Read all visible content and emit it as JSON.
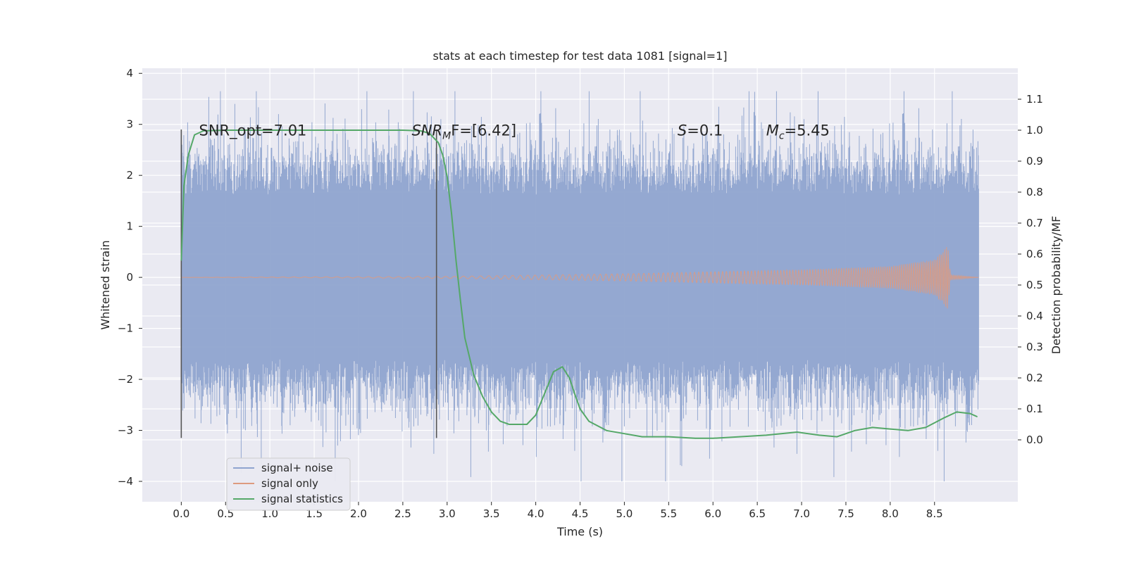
{
  "chart_data": {
    "type": "line",
    "title": "stats at each timestep for test data 1081 [signal=1]",
    "xlabel": "Time (s)",
    "ylabel": "Whitened strain",
    "y2label": "Detection probability/MF",
    "xlim": [
      -0.44,
      9.44
    ],
    "ylim": [
      -4.4,
      4.1
    ],
    "y2lim": [
      -0.2,
      1.2
    ],
    "xticks": [
      0.0,
      0.5,
      1.0,
      1.5,
      2.0,
      2.5,
      3.0,
      3.5,
      4.0,
      4.5,
      5.0,
      5.5,
      6.0,
      6.5,
      7.0,
      7.5,
      8.0,
      8.5
    ],
    "xtick_labels": [
      "0.0",
      "0.5",
      "1.0",
      "1.5",
      "2.0",
      "2.5",
      "3.0",
      "3.5",
      "4.0",
      "4.5",
      "5.0",
      "5.5",
      "6.0",
      "6.5",
      "7.0",
      "7.5",
      "8.0",
      "8.5"
    ],
    "yticks": [
      -4,
      -3,
      -2,
      -1,
      0,
      1,
      2,
      3,
      4
    ],
    "ytick_labels": [
      "−4",
      "−3",
      "−2",
      "−1",
      "0",
      "1",
      "2",
      "3",
      "4"
    ],
    "y2ticks": [
      0.0,
      0.1,
      0.2,
      0.3,
      0.4,
      0.5,
      0.6,
      0.7,
      0.8,
      0.9,
      1.0,
      1.1
    ],
    "y2tick_labels": [
      "0.0",
      "0.1",
      "0.2",
      "0.3",
      "0.4",
      "0.5",
      "0.6",
      "0.7",
      "0.8",
      "0.9",
      "1.0",
      "1.1"
    ],
    "grid": true,
    "legend_placement": "lower-left",
    "series": [
      {
        "name": "signal+ noise",
        "color": "#8fa4cf",
        "kind": "noise-band",
        "x_range": [
          0.0,
          9.0
        ],
        "typical_amplitude": 1.6,
        "peak_max": 3.65,
        "peak_min": -4.0
      },
      {
        "name": "signal only",
        "color": "#dd9a7f",
        "kind": "chirp",
        "x_range": [
          0.0,
          9.0
        ],
        "envelope": [
          [
            0.0,
            0.0
          ],
          [
            3.0,
            0.02
          ],
          [
            5.0,
            0.07
          ],
          [
            7.0,
            0.15
          ],
          [
            8.0,
            0.22
          ],
          [
            8.5,
            0.35
          ],
          [
            8.65,
            0.62
          ],
          [
            8.68,
            0.05
          ],
          [
            9.0,
            0.0
          ]
        ]
      },
      {
        "name": "signal statistics",
        "color": "#55a868",
        "axis": "right",
        "kind": "line",
        "x": [
          0.0,
          0.03,
          0.08,
          0.15,
          0.25,
          0.5,
          1.0,
          2.0,
          2.5,
          2.7,
          2.8,
          2.9,
          2.95,
          3.0,
          3.05,
          3.1,
          3.15,
          3.2,
          3.3,
          3.4,
          3.5,
          3.6,
          3.7,
          3.8,
          3.9,
          4.0,
          4.1,
          4.2,
          4.3,
          4.38,
          4.45,
          4.5,
          4.6,
          4.8,
          5.0,
          5.2,
          5.5,
          5.8,
          6.0,
          6.3,
          6.6,
          6.95,
          7.2,
          7.4,
          7.6,
          7.8,
          8.0,
          8.2,
          8.4,
          8.6,
          8.75,
          8.9,
          8.98
        ],
        "y": [
          0.58,
          0.82,
          0.92,
          0.985,
          0.998,
          1.0,
          1.0,
          1.0,
          1.0,
          0.998,
          0.99,
          0.96,
          0.92,
          0.85,
          0.73,
          0.58,
          0.45,
          0.33,
          0.21,
          0.14,
          0.09,
          0.06,
          0.05,
          0.05,
          0.05,
          0.08,
          0.15,
          0.22,
          0.236,
          0.2,
          0.14,
          0.1,
          0.06,
          0.03,
          0.02,
          0.01,
          0.01,
          0.005,
          0.005,
          0.01,
          0.015,
          0.025,
          0.015,
          0.01,
          0.03,
          0.04,
          0.035,
          0.03,
          0.04,
          0.07,
          0.09,
          0.085,
          0.075
        ]
      }
    ],
    "vlines": [
      {
        "x": 0.0,
        "y_range": [
          -3.15,
          2.9
        ],
        "color": "#555555"
      },
      {
        "x": 2.88,
        "y_range": [
          -3.15,
          2.9
        ],
        "color": "#555555"
      }
    ],
    "annotations": [
      {
        "x": 0.2,
        "y": 2.88,
        "text": "SNR_opt=7.01"
      },
      {
        "x": 2.6,
        "y": 2.88,
        "text": "SNR",
        "sub": "M",
        "rest": "F=[6.42]"
      },
      {
        "x": 5.6,
        "y": 2.88,
        "text": "S",
        "rest": "=0.1"
      },
      {
        "x": 6.6,
        "y": 2.88,
        "text": "M",
        "sub": "c",
        "rest": "=5.45"
      }
    ]
  }
}
